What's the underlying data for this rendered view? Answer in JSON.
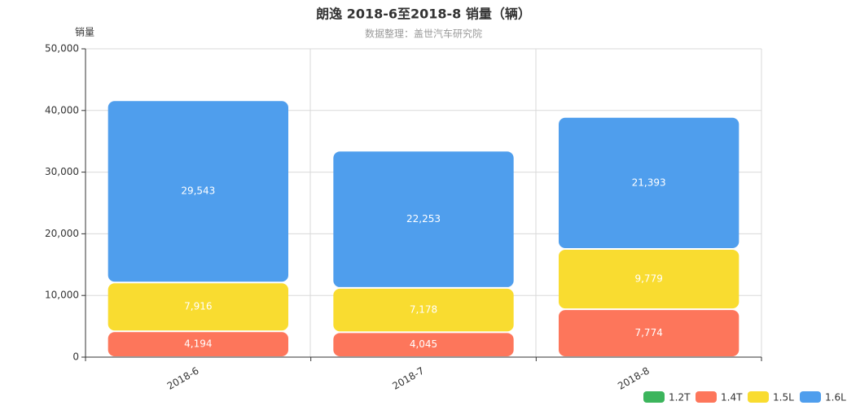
{
  "chart_data": {
    "type": "stacked_bar",
    "title": "朗逸 2018-6至2018-8 销量（辆）",
    "subtitle": "数据整理：盖世汽车研究院",
    "y_label": "销量",
    "categories": [
      "2018-6",
      "2018-7",
      "2018-8"
    ],
    "series": [
      {
        "name": "1.2T",
        "color": "#3cb55c",
        "values": [
          0,
          0,
          0
        ]
      },
      {
        "name": "1.4T",
        "color": "#fd765b",
        "values": [
          4194,
          4045,
          7774
        ],
        "value_labels": [
          "4,194",
          "4,045",
          "7,774"
        ]
      },
      {
        "name": "1.5L",
        "color": "#f9dc30",
        "values": [
          7916,
          7178,
          9779
        ],
        "value_labels": [
          "7,916",
          "7,178",
          "9,779"
        ]
      },
      {
        "name": "1.6L",
        "color": "#4f9eed",
        "values": [
          29543,
          22253,
          21393
        ],
        "value_labels": [
          "29,543",
          "22,253",
          "21,393"
        ]
      }
    ],
    "ylim": [
      0,
      50000
    ],
    "yticks": [
      0,
      {
        "value": 10000,
        "label": "10,000"
      },
      {
        "value": 20000,
        "label": "20,000"
      },
      {
        "value": 30000,
        "label": "30,000"
      },
      {
        "value": 40000,
        "label": "40,000"
      },
      {
        "value": 50000,
        "label": "50,000"
      }
    ],
    "grid": true,
    "legend": "bottom-right"
  }
}
